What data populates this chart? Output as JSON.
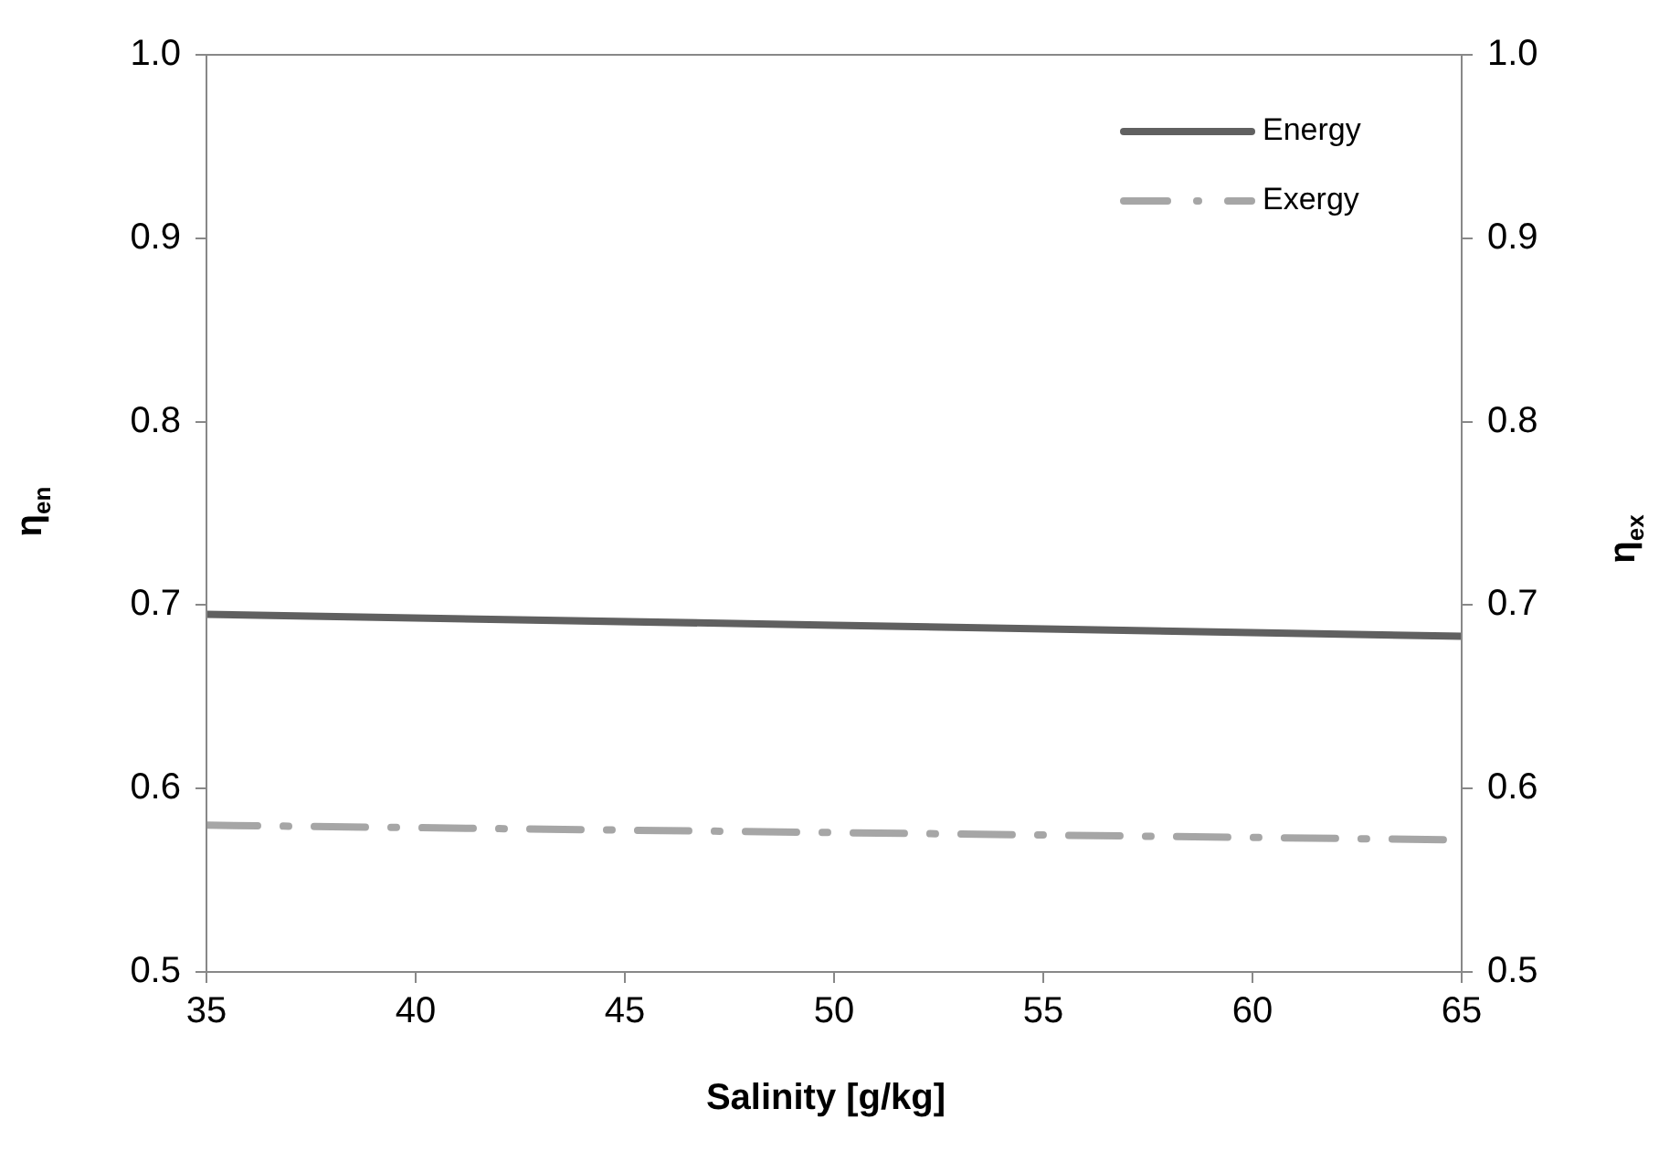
{
  "chart_data": {
    "type": "line",
    "xlabel": "Salinity [g/kg]",
    "ylabel": "η$_{en}$",
    "y2label": "η$_{ex}$",
    "x": [
      35,
      50,
      65
    ],
    "series": [
      {
        "name": "Energy",
        "color": "#606060",
        "values": [
          0.695,
          0.689,
          0.683
        ],
        "line_style": "solid"
      },
      {
        "name": "Exergy",
        "color": "#a6a6a6",
        "values": [
          0.58,
          0.576,
          0.572
        ],
        "axis": "y2",
        "line_style": "dashed"
      }
    ],
    "xlim": [
      35,
      65
    ],
    "xticks": [
      35,
      40,
      45,
      50,
      55,
      60,
      65
    ],
    "ylim": [
      0.5,
      1.0
    ],
    "yticks": [
      {
        "value": 0.5,
        "label": "0.5"
      },
      {
        "value": 0.6,
        "label": "0.6"
      },
      {
        "value": 0.7,
        "label": "0.7"
      },
      {
        "value": 0.8,
        "label": "0.8"
      },
      {
        "value": 0.9,
        "label": "0.9"
      },
      {
        "value": 1.0,
        "label": "1.0"
      }
    ],
    "y2lim": [
      0.5,
      1.0
    ],
    "y2ticks": [
      {
        "value": 0.5,
        "label": "0.5"
      },
      {
        "value": 0.6,
        "label": "0.6"
      },
      {
        "value": 0.7,
        "label": "0.7"
      },
      {
        "value": 0.8,
        "label": "0.8"
      },
      {
        "value": 0.9,
        "label": "0.9"
      },
      {
        "value": 1.0,
        "label": "1.0"
      }
    ],
    "grid": false,
    "legend": "top right",
    "marker": "none"
  }
}
